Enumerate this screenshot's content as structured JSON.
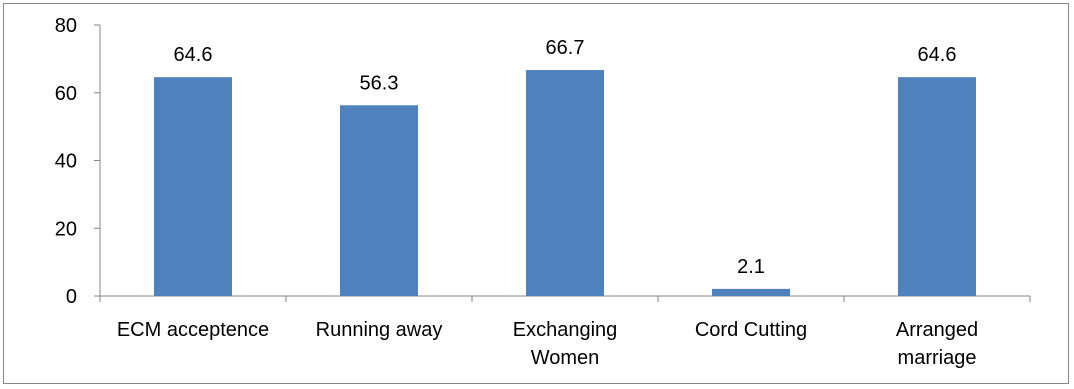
{
  "chart_data": {
    "type": "bar",
    "categories": [
      [
        "ECM acceptence"
      ],
      [
        "Running away"
      ],
      [
        "Exchanging",
        "Women"
      ],
      [
        "Cord Cutting"
      ],
      [
        "Arranged",
        "marriage"
      ]
    ],
    "values": [
      64.6,
      56.3,
      66.7,
      2.1,
      64.6
    ],
    "data_labels": [
      "64.6",
      "56.3",
      "66.7",
      "2.1",
      "64.6"
    ],
    "y_ticks": [
      "0",
      "20",
      "40",
      "60",
      "80"
    ],
    "ylim": [
      0,
      80
    ],
    "grid": false,
    "legend": "none",
    "colors": {
      "bar": "#4F81BD",
      "axis": "#868686",
      "frame": "#868686"
    }
  }
}
